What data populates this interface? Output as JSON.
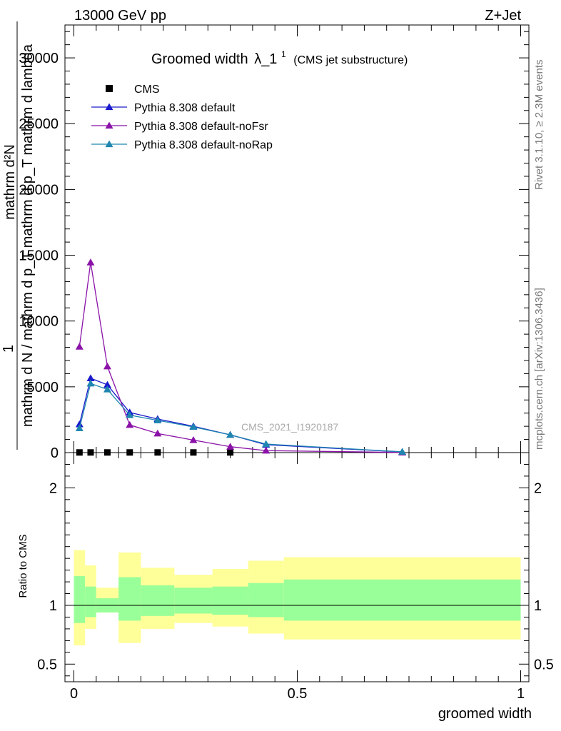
{
  "header": {
    "left": "13000 GeV pp",
    "right": "Z+Jet"
  },
  "side_text": {
    "rivet": "Rivet 3.1.10, ≥ 2.3M events",
    "mcplots": "mcplots.cern.ch [arXiv:1306.3436]"
  },
  "chart_data": {
    "type": "line",
    "title_main": "Groomed width",
    "title_sym": "λ_1",
    "title_sup": "1",
    "title_paren": "(CMS jet substructure)",
    "analysis_label": "CMS_2021_I1920187",
    "ylabel_top": "1",
    "ylabel_num": "mathrm d²N",
    "ylabel_den": "mathrm d N / mathrm d p_T mathrm d p_T mathrm d lambda",
    "ylabel_ratio": "Ratio to CMS",
    "xlabel": "groomed width",
    "xlim": [
      0,
      1
    ],
    "ylim_main": [
      0,
      32500
    ],
    "ylim_ratio": [
      0.35,
      2.3
    ],
    "yticks_main": [
      "0",
      "5000",
      "10000",
      "15000",
      "20000",
      "25000",
      "30000"
    ],
    "yticks_ratio": [
      "0.5",
      "1",
      "2"
    ],
    "xticks": [
      "0",
      "0.5",
      "1"
    ],
    "legend": [
      "CMS",
      "Pythia 8.308 default",
      "Pythia 8.308 default-noFsr",
      "Pythia 8.308 default-noRap"
    ],
    "colors": {
      "cms": "#000000",
      "default": "#1a1acc",
      "noFsr": "#8b12a8",
      "noRap": "#1f86b0",
      "band_inner": "#99ff99",
      "band_outer": "#ffff99"
    },
    "x": [
      0.0125,
      0.0375,
      0.075,
      0.125,
      0.1875,
      0.2675,
      0.35,
      0.43,
      0.735
    ],
    "series": [
      {
        "name": "CMS",
        "values": [
          12,
          12,
          12,
          12,
          12,
          12,
          12,
          0,
          0
        ]
      },
      {
        "name": "Pythia 8.308 default",
        "values": [
          2150,
          5650,
          5150,
          3050,
          2550,
          2000,
          1350,
          600,
          50
        ]
      },
      {
        "name": "Pythia 8.308 default-noFsr",
        "values": [
          8050,
          14450,
          6550,
          2100,
          1450,
          950,
          450,
          150,
          10
        ]
      },
      {
        "name": "Pythia 8.308 default-noRap",
        "values": [
          1850,
          5250,
          4800,
          2850,
          2450,
          1950,
          1350,
          650,
          60
        ]
      }
    ],
    "ratio_bins": [
      {
        "x0": 0.0,
        "x1": 0.025,
        "inner": [
          0.85,
          1.25
        ],
        "outer": [
          0.66,
          1.47
        ]
      },
      {
        "x0": 0.025,
        "x1": 0.05,
        "inner": [
          0.9,
          1.16
        ],
        "outer": [
          0.8,
          1.34
        ]
      },
      {
        "x0": 0.05,
        "x1": 0.1,
        "inner": [
          0.94,
          1.06
        ],
        "outer": [
          0.94,
          1.15
        ]
      },
      {
        "x0": 0.1,
        "x1": 0.15,
        "inner": [
          0.87,
          1.24
        ],
        "outer": [
          0.68,
          1.45
        ]
      },
      {
        "x0": 0.15,
        "x1": 0.225,
        "inner": [
          0.91,
          1.17
        ],
        "outer": [
          0.8,
          1.32
        ]
      },
      {
        "x0": 0.225,
        "x1": 0.31,
        "inner": [
          0.93,
          1.15
        ],
        "outer": [
          0.85,
          1.26
        ]
      },
      {
        "x0": 0.31,
        "x1": 0.39,
        "inner": [
          0.92,
          1.16
        ],
        "outer": [
          0.82,
          1.31
        ]
      },
      {
        "x0": 0.39,
        "x1": 0.47,
        "inner": [
          0.9,
          1.19
        ],
        "outer": [
          0.76,
          1.38
        ]
      },
      {
        "x0": 0.47,
        "x1": 1.0,
        "inner": [
          0.87,
          1.22
        ],
        "outer": [
          0.71,
          1.41
        ]
      }
    ]
  }
}
